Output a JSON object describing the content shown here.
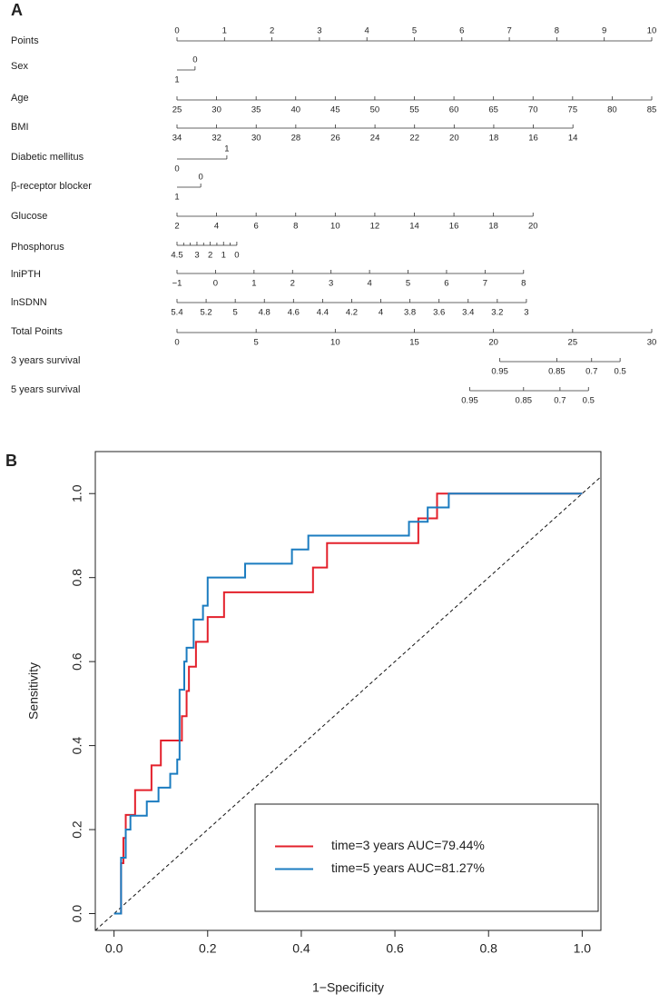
{
  "chart_data": [
    {
      "type": "nomogram",
      "panel": "A",
      "points_lim": [
        0,
        10
      ],
      "total_lim": [
        0,
        30
      ],
      "rows": [
        {
          "label": "Points",
          "scale": "points",
          "lim": [
            0,
            10
          ],
          "points": [
            0,
            10
          ],
          "ticks": [
            0,
            1,
            2,
            3,
            4,
            5,
            6,
            7,
            8,
            9,
            10
          ]
        },
        {
          "label": "Sex",
          "scale": "points",
          "lim": [
            1,
            0
          ],
          "points": [
            0,
            0.38
          ],
          "ticks": [
            1,
            0
          ]
        },
        {
          "label": "Age",
          "scale": "points",
          "lim": [
            25,
            85
          ],
          "points": [
            0,
            10
          ],
          "ticks": [
            25,
            30,
            35,
            40,
            45,
            50,
            55,
            60,
            65,
            70,
            75,
            80,
            85
          ]
        },
        {
          "label": "BMI",
          "scale": "points",
          "lim": [
            34,
            14
          ],
          "points": [
            0,
            8.34
          ],
          "ticks": [
            34,
            32,
            30,
            28,
            26,
            24,
            22,
            20,
            18,
            16,
            14
          ]
        },
        {
          "label": "Diabetic mellitus",
          "scale": "points",
          "lim": [
            0,
            1
          ],
          "points": [
            0,
            1.05
          ],
          "ticks": [
            0,
            1
          ]
        },
        {
          "label": "β-receptor blocker",
          "scale": "points",
          "lim": [
            1,
            0
          ],
          "points": [
            0,
            0.5
          ],
          "ticks": [
            1,
            0
          ]
        },
        {
          "label": "Glucose",
          "scale": "points",
          "lim": [
            2,
            20
          ],
          "points": [
            0,
            7.5
          ],
          "ticks": [
            2,
            4,
            6,
            8,
            10,
            12,
            14,
            16,
            18,
            20
          ]
        },
        {
          "label": "Phosphorus",
          "scale": "points",
          "lim": [
            4.5,
            0
          ],
          "points": [
            0,
            1.26
          ],
          "ticks": [
            4.5,
            3,
            2,
            1,
            0
          ],
          "minor_ticks": [
            4,
            3.5,
            2.5,
            1.5,
            0.5
          ]
        },
        {
          "label": "lniPTH",
          "scale": "points",
          "lim": [
            -1,
            8
          ],
          "points": [
            0,
            7.3
          ],
          "ticks": [
            {
              "value": -1,
              "label": "−1"
            },
            0,
            1,
            2,
            3,
            4,
            5,
            6,
            7,
            8
          ]
        },
        {
          "label": "lnSDNN",
          "scale": "points",
          "lim": [
            5.4,
            3
          ],
          "points": [
            0,
            7.36
          ],
          "ticks": [
            5.4,
            5.2,
            5,
            4.8,
            4.6,
            4.4,
            4.2,
            4,
            3.8,
            3.6,
            3.4,
            3.2,
            3
          ]
        },
        {
          "label": "Total Points",
          "scale": "total",
          "lim": [
            0,
            30
          ],
          "points": [
            0,
            30
          ],
          "ticks": [
            0,
            5,
            10,
            15,
            20,
            25,
            30
          ]
        },
        {
          "label": "3 years survival",
          "scale": "total",
          "ticks": [
            0.95,
            0.85,
            0.7,
            0.5
          ],
          "positions": [
            20.4,
            24.0,
            26.2,
            28.0
          ]
        },
        {
          "label": "5 years survival",
          "scale": "total",
          "ticks": [
            0.95,
            0.85,
            0.7,
            0.5
          ],
          "positions": [
            18.5,
            21.9,
            24.2,
            26.0
          ]
        }
      ]
    },
    {
      "type": "line",
      "panel": "B",
      "x_label": "1−Specificity",
      "y_label": "Sensitivity",
      "xlim": [
        -0.04,
        1.04
      ],
      "ylim": [
        -0.04,
        1.1
      ],
      "xticks": [
        {
          "value": 0,
          "label": "0.0"
        },
        {
          "value": 0.2,
          "label": "0.2"
        },
        {
          "value": 0.4,
          "label": "0.4"
        },
        {
          "value": 0.6,
          "label": "0.6"
        },
        {
          "value": 0.8,
          "label": "0.8"
        },
        {
          "value": 1,
          "label": "1.0"
        }
      ],
      "yticks": [
        {
          "value": 0,
          "label": "0.0"
        },
        {
          "value": 0.2,
          "label": "0.2"
        },
        {
          "value": 0.4,
          "label": "0.4"
        },
        {
          "value": 0.6,
          "label": "0.6"
        },
        {
          "value": 0.8,
          "label": "0.8"
        },
        {
          "value": 1,
          "label": "1.0"
        }
      ],
      "diagonal": true,
      "legend": "bottom-right",
      "series": [
        {
          "name": "time=3 years AUC=79.44%",
          "color": "#e3202b",
          "x": [
            0,
            0.015,
            0.015,
            0.02,
            0.02,
            0.025,
            0.025,
            0.045,
            0.045,
            0.08,
            0.08,
            0.1,
            0.1,
            0.145,
            0.145,
            0.155,
            0.155,
            0.16,
            0.16,
            0.175,
            0.175,
            0.2,
            0.2,
            0.235,
            0.235,
            0.425,
            0.425,
            0.455,
            0.455,
            0.65,
            0.65,
            0.69,
            0.69,
            1
          ],
          "values": [
            0,
            0,
            0.12,
            0.12,
            0.18,
            0.18,
            0.235,
            0.235,
            0.294,
            0.294,
            0.353,
            0.353,
            0.412,
            0.412,
            0.47,
            0.47,
            0.53,
            0.53,
            0.588,
            0.588,
            0.647,
            0.647,
            0.706,
            0.706,
            0.765,
            0.765,
            0.824,
            0.824,
            0.882,
            0.882,
            0.941,
            0.941,
            1,
            1
          ]
        },
        {
          "name": "time=5 years AUC=81.27%",
          "color": "#1b7cc0",
          "x": [
            0,
            0.015,
            0.015,
            0.025,
            0.025,
            0.035,
            0.035,
            0.07,
            0.07,
            0.095,
            0.095,
            0.12,
            0.12,
            0.135,
            0.135,
            0.14,
            0.14,
            0.15,
            0.15,
            0.155,
            0.155,
            0.17,
            0.17,
            0.19,
            0.19,
            0.2,
            0.2,
            0.28,
            0.28,
            0.38,
            0.38,
            0.415,
            0.415,
            0.63,
            0.63,
            0.67,
            0.67,
            0.715,
            0.715,
            1
          ],
          "values": [
            0,
            0,
            0.133,
            0.133,
            0.2,
            0.2,
            0.233,
            0.233,
            0.267,
            0.267,
            0.3,
            0.3,
            0.333,
            0.333,
            0.367,
            0.367,
            0.533,
            0.533,
            0.6,
            0.6,
            0.633,
            0.633,
            0.7,
            0.7,
            0.733,
            0.733,
            0.8,
            0.8,
            0.833,
            0.833,
            0.867,
            0.867,
            0.9,
            0.9,
            0.933,
            0.933,
            0.967,
            0.967,
            1,
            1
          ]
        }
      ]
    }
  ]
}
